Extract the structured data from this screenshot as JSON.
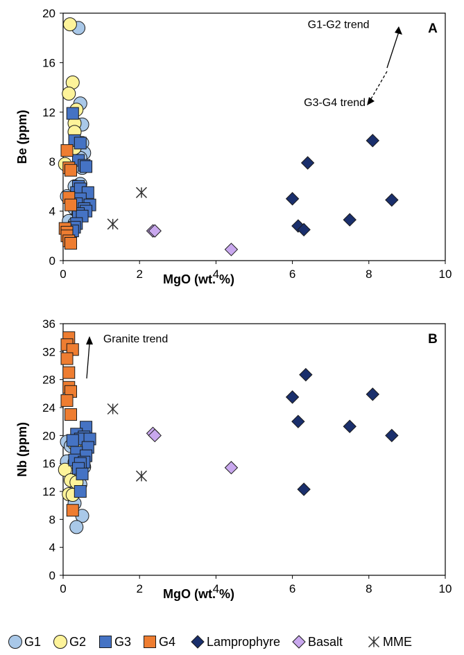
{
  "colors": {
    "G1": "#a9c8e8",
    "G2": "#fdf39a",
    "G3": "#4573c4",
    "G4": "#ee7d31",
    "Lamprophyre": "#1a2f6c",
    "Basalt": "#c9a8ee",
    "MME": "#333333"
  },
  "legend": {
    "G1": "G1",
    "G2": "G2",
    "G3": "G3",
    "G4": "G4",
    "Lamprophyre": "Lamprophyre",
    "Basalt": "Basalt",
    "MME": "MME"
  },
  "chart_data": [
    {
      "type": "scatter",
      "panel": "A",
      "xlabel": "MgO (wt. %)",
      "ylabel": "Be (ppm)",
      "xlim": [
        0,
        10
      ],
      "ylim": [
        0,
        20
      ],
      "xticks": [
        "0",
        "2",
        "4",
        "6",
        "8",
        "10"
      ],
      "yticks": [
        "0",
        "4",
        "8",
        "12",
        "16",
        "20"
      ],
      "annotations": [
        {
          "text": "G1-G2 trend",
          "x": 6.4,
          "y": 18.8
        },
        {
          "text": "G3-G4 trend",
          "x": 6.3,
          "y": 12.5
        }
      ],
      "series": [
        {
          "name": "G1",
          "marker": "circle",
          "points": [
            [
              0.4,
              18.8
            ],
            [
              0.45,
              12.7
            ],
            [
              0.5,
              11.0
            ],
            [
              0.5,
              9.5
            ],
            [
              0.55,
              8.7
            ],
            [
              0.45,
              8.3
            ],
            [
              0.5,
              7.5
            ],
            [
              0.45,
              6.2
            ],
            [
              0.3,
              6.0
            ],
            [
              0.35,
              5.4
            ],
            [
              0.1,
              5.2
            ],
            [
              0.25,
              4.6
            ],
            [
              0.3,
              4.2
            ],
            [
              0.4,
              3.8
            ],
            [
              0.15,
              3.2
            ],
            [
              0.3,
              3.0
            ]
          ]
        },
        {
          "name": "G2",
          "marker": "circle",
          "points": [
            [
              0.18,
              19.1
            ],
            [
              0.25,
              14.4
            ],
            [
              0.15,
              13.5
            ],
            [
              0.35,
              12.2
            ],
            [
              0.3,
              11.1
            ],
            [
              0.3,
              10.4
            ],
            [
              0.3,
              9.1
            ],
            [
              0.05,
              7.8
            ]
          ]
        },
        {
          "name": "G3",
          "marker": "square",
          "points": [
            [
              0.25,
              11.9
            ],
            [
              0.3,
              9.7
            ],
            [
              0.45,
              9.5
            ],
            [
              0.4,
              8.1
            ],
            [
              0.55,
              7.7
            ],
            [
              0.6,
              7.6
            ],
            [
              0.4,
              6.0
            ],
            [
              0.35,
              5.5
            ],
            [
              0.45,
              5.8
            ],
            [
              0.65,
              5.5
            ],
            [
              0.45,
              5.0
            ],
            [
              0.35,
              4.6
            ],
            [
              0.7,
              4.5
            ],
            [
              0.55,
              4.2
            ],
            [
              0.6,
              4.0
            ],
            [
              0.4,
              3.8
            ],
            [
              0.5,
              3.6
            ],
            [
              0.35,
              3.0
            ],
            [
              0.3,
              2.7
            ],
            [
              0.25,
              2.4
            ]
          ]
        },
        {
          "name": "G4",
          "marker": "square",
          "points": [
            [
              0.1,
              8.9
            ],
            [
              0.15,
              7.5
            ],
            [
              0.2,
              7.3
            ],
            [
              0.15,
              5.1
            ],
            [
              0.2,
              4.5
            ],
            [
              0.05,
              2.6
            ],
            [
              0.1,
              2.3
            ],
            [
              0.1,
              2.0
            ],
            [
              0.15,
              1.6
            ],
            [
              0.2,
              1.4
            ]
          ]
        },
        {
          "name": "Lamprophyre",
          "marker": "diamond",
          "points": [
            [
              8.1,
              9.7
            ],
            [
              6.4,
              7.9
            ],
            [
              6.0,
              5.0
            ],
            [
              8.6,
              4.9
            ],
            [
              7.5,
              3.3
            ],
            [
              6.15,
              2.8
            ],
            [
              6.3,
              2.5
            ]
          ]
        },
        {
          "name": "Basalt",
          "marker": "diamond",
          "points": [
            [
              2.35,
              2.4
            ],
            [
              2.4,
              2.4
            ],
            [
              4.4,
              0.9
            ]
          ]
        },
        {
          "name": "MME",
          "marker": "asterisk",
          "points": [
            [
              2.05,
              5.5
            ],
            [
              1.3,
              2.95
            ]
          ]
        }
      ]
    },
    {
      "type": "scatter",
      "panel": "B",
      "xlabel": "MgO (wt. %)",
      "ylabel": "Nb (ppm)",
      "xlim": [
        0,
        10
      ],
      "ylim": [
        0,
        36
      ],
      "xticks": [
        "0",
        "2",
        "4",
        "6",
        "8",
        "10"
      ],
      "yticks": [
        "0",
        "4",
        "8",
        "12",
        "16",
        "20",
        "24",
        "28",
        "32",
        "36"
      ],
      "annotations": [
        {
          "text": "Granite trend",
          "x": 1.05,
          "y": 33.3
        }
      ],
      "series": [
        {
          "name": "G1",
          "marker": "circle",
          "points": [
            [
              0.1,
              19.1
            ],
            [
              0.2,
              18.5
            ],
            [
              0.1,
              16.3
            ],
            [
              0.3,
              16.2
            ],
            [
              0.5,
              16.1
            ],
            [
              0.55,
              15.5
            ],
            [
              0.4,
              14.3
            ],
            [
              0.35,
              13.8
            ],
            [
              0.45,
              13.0
            ],
            [
              0.35,
              12.3
            ],
            [
              0.3,
              10.3
            ],
            [
              0.5,
              8.5
            ],
            [
              0.35,
              6.9
            ]
          ]
        },
        {
          "name": "G2",
          "marker": "circle",
          "points": [
            [
              0.3,
              18.8
            ],
            [
              0.05,
              15.1
            ],
            [
              0.2,
              13.6
            ],
            [
              0.35,
              13.3
            ],
            [
              0.15,
              11.6
            ],
            [
              0.25,
              11.5
            ]
          ]
        },
        {
          "name": "G3",
          "marker": "square",
          "points": [
            [
              0.6,
              21.2
            ],
            [
              0.35,
              20.2
            ],
            [
              0.55,
              19.8
            ],
            [
              0.45,
              19.5
            ],
            [
              0.7,
              19.5
            ],
            [
              0.25,
              19.3
            ],
            [
              0.65,
              18.3
            ],
            [
              0.35,
              17.6
            ],
            [
              0.6,
              17.1
            ],
            [
              0.3,
              16.5
            ],
            [
              0.55,
              16.2
            ],
            [
              0.45,
              16.0
            ],
            [
              0.4,
              15.3
            ],
            [
              0.5,
              14.5
            ],
            [
              0.45,
              12.0
            ]
          ]
        },
        {
          "name": "G4",
          "marker": "square",
          "points": [
            [
              0.15,
              34.0
            ],
            [
              0.1,
              33.0
            ],
            [
              0.25,
              32.3
            ],
            [
              0.1,
              31.0
            ],
            [
              0.15,
              29.0
            ],
            [
              0.15,
              26.9
            ],
            [
              0.2,
              26.3
            ],
            [
              0.1,
              25.0
            ],
            [
              0.2,
              23.0
            ],
            [
              0.25,
              9.3
            ]
          ]
        },
        {
          "name": "Lamprophyre",
          "marker": "diamond",
          "points": [
            [
              6.35,
              28.7
            ],
            [
              8.1,
              25.9
            ],
            [
              6.0,
              25.5
            ],
            [
              6.15,
              22.0
            ],
            [
              7.5,
              21.3
            ],
            [
              8.6,
              20.0
            ],
            [
              6.3,
              12.3
            ]
          ]
        },
        {
          "name": "Basalt",
          "marker": "diamond",
          "points": [
            [
              2.35,
              20.3
            ],
            [
              2.4,
              20.0
            ],
            [
              4.4,
              15.4
            ]
          ]
        },
        {
          "name": "MME",
          "marker": "asterisk",
          "points": [
            [
              1.3,
              23.8
            ],
            [
              2.05,
              14.2
            ]
          ]
        }
      ]
    }
  ]
}
